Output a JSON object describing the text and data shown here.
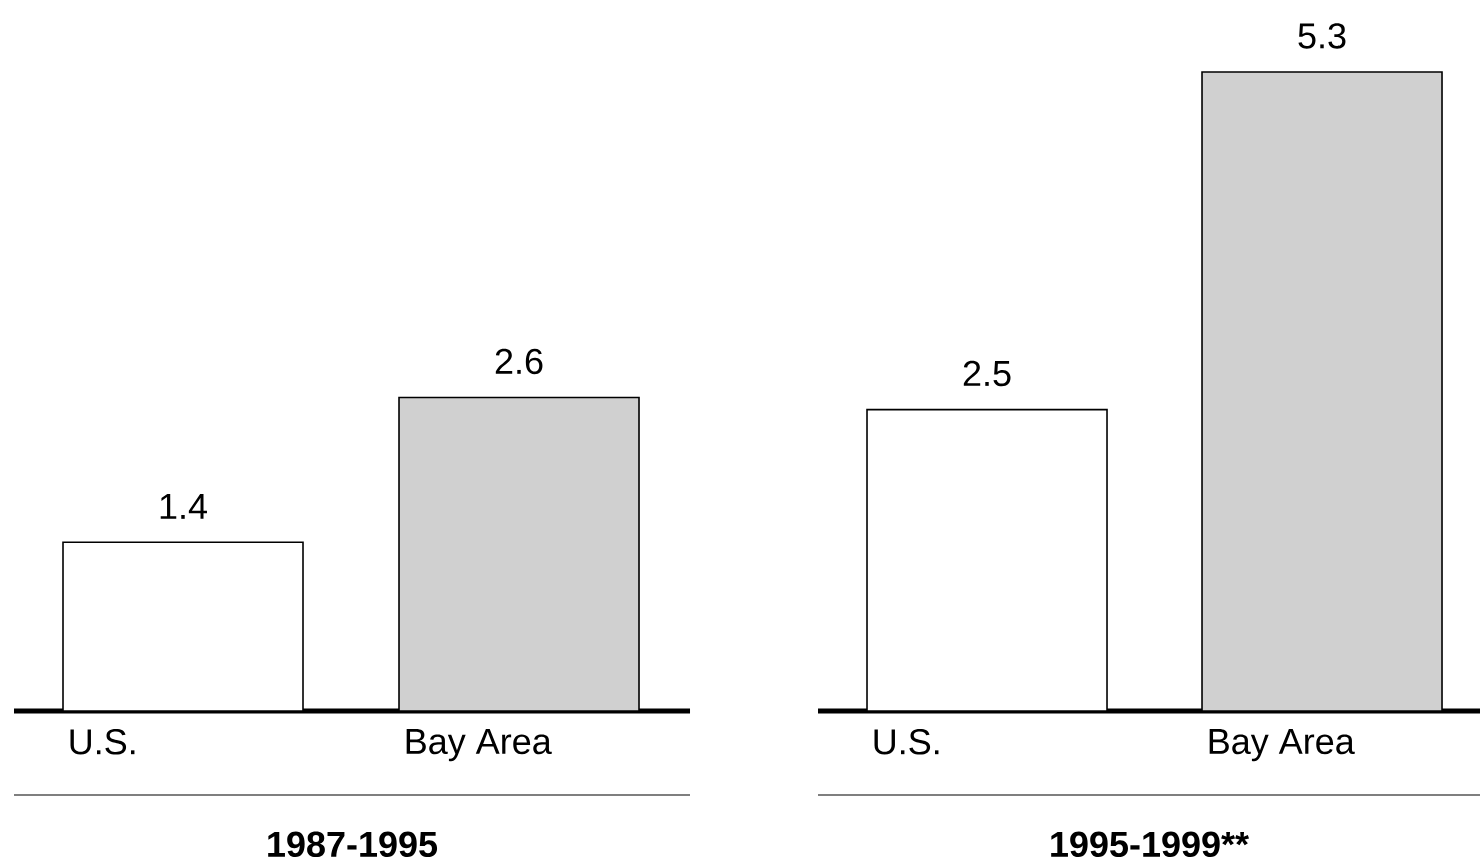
{
  "chart_data": [
    {
      "type": "bar",
      "xlabel": "1987-1995",
      "categories": [
        "U.S.",
        "Bay Area"
      ],
      "values": [
        1.4,
        2.6
      ],
      "colors": [
        "#ffffff",
        "#d0d0d0"
      ],
      "data_labels": true
    },
    {
      "type": "bar",
      "xlabel": "1995-1999**",
      "categories": [
        "U.S.",
        "Bay Area"
      ],
      "values": [
        2.5,
        5.3
      ],
      "colors": [
        "#ffffff",
        "#d0d0d0"
      ],
      "data_labels": true
    }
  ]
}
